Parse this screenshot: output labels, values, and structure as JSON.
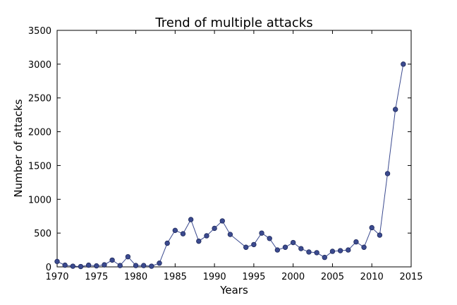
{
  "chart_data": {
    "type": "line",
    "title": "Trend of multiple attacks",
    "xlabel": "Years",
    "ylabel": "Number of attacks",
    "xlim": [
      1970,
      2015
    ],
    "ylim": [
      0,
      3500
    ],
    "x_ticks": [
      1970,
      1975,
      1980,
      1985,
      1990,
      1995,
      2000,
      2005,
      2010,
      2015
    ],
    "y_ticks": [
      0,
      500,
      1000,
      1500,
      2000,
      2500,
      3000,
      3500
    ],
    "grid": false,
    "series": [
      {
        "color": "#3b4a8f",
        "x": [
          1970,
          1971,
          1972,
          1973,
          1974,
          1975,
          1976,
          1977,
          1978,
          1979,
          1980,
          1981,
          1982,
          1983,
          1984,
          1985,
          1986,
          1987,
          1988,
          1989,
          1990,
          1991,
          1992,
          1994,
          1995,
          1996,
          1997,
          1998,
          1999,
          2000,
          2001,
          2002,
          2003,
          2004,
          2005,
          2006,
          2007,
          2008,
          2009,
          2010,
          2011,
          2012,
          2013,
          2014
        ],
        "y": [
          80,
          25,
          10,
          5,
          25,
          15,
          30,
          100,
          20,
          150,
          20,
          20,
          10,
          55,
          350,
          540,
          490,
          700,
          380,
          460,
          570,
          680,
          480,
          290,
          330,
          500,
          420,
          250,
          290,
          360,
          270,
          220,
          210,
          140,
          230,
          240,
          250,
          370,
          290,
          580,
          470,
          1380,
          2330,
          3000
        ]
      }
    ]
  }
}
